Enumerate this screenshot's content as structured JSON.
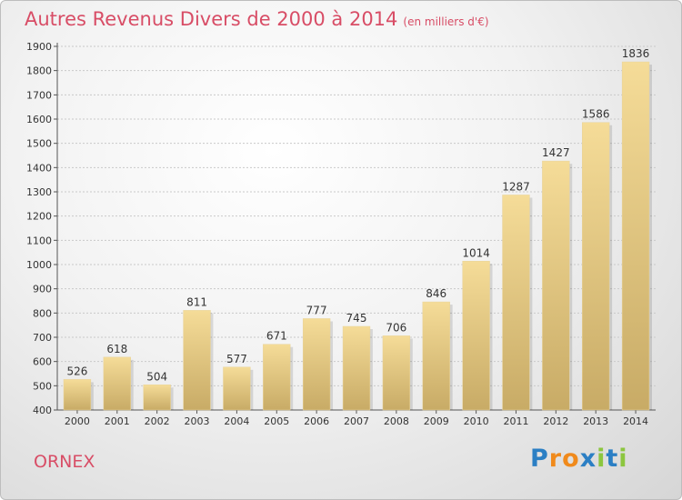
{
  "header": {
    "title": "Autres Revenus Divers de 2000 à 2014",
    "subtitle": "(en milliers d'€)"
  },
  "footer": {
    "commune": "ORNEX",
    "logo_text": "Proxiti",
    "logo_letters": [
      "P",
      "r",
      "o",
      "x",
      "i",
      "t",
      "i"
    ],
    "logo_colors": [
      "#2b7fc4",
      "#f08a1c",
      "#f08a1c",
      "#2b7fc4",
      "#8cc63f",
      "#2b7fc4",
      "#8cc63f"
    ]
  },
  "chart_data": {
    "type": "bar",
    "title": "Autres Revenus Divers de 2000 à 2014",
    "subtitle": "(en milliers d'€)",
    "categories": [
      "2000",
      "2001",
      "2002",
      "2003",
      "2004",
      "2005",
      "2006",
      "2007",
      "2008",
      "2009",
      "2010",
      "2011",
      "2012",
      "2013",
      "2014"
    ],
    "values": [
      526,
      618,
      504,
      811,
      577,
      671,
      777,
      745,
      706,
      846,
      1014,
      1287,
      1427,
      1586,
      1836
    ],
    "ylim": [
      400,
      1900
    ],
    "yticks": [
      400,
      500,
      600,
      700,
      800,
      900,
      1000,
      1100,
      1200,
      1300,
      1400,
      1500,
      1600,
      1700,
      1800,
      1900
    ],
    "grid": true,
    "legend": "none",
    "bar_color_light": "#f5dc98",
    "bar_color_dark": "#c8ab66"
  }
}
